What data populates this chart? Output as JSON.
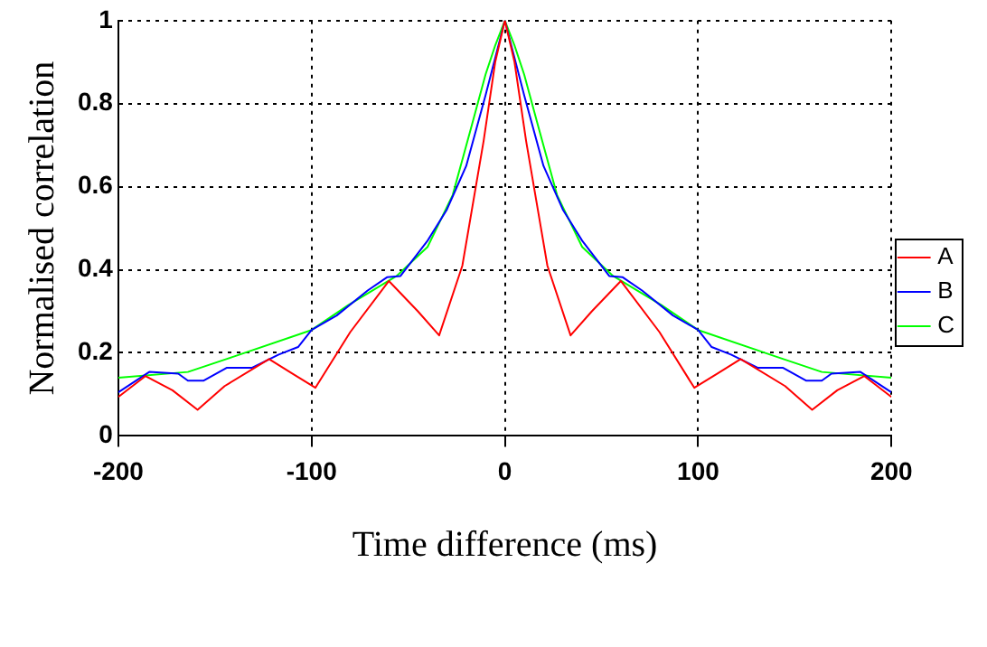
{
  "chart_data": {
    "type": "line",
    "xlabel": "Time difference (ms)",
    "ylabel": "Normalised correlation",
    "xlim": [
      -200,
      200
    ],
    "xticks": [
      -200,
      -100,
      0,
      100,
      200
    ],
    "ylim": [
      0,
      1
    ],
    "yticks": [
      0,
      0.2,
      0.4,
      0.6,
      0.8,
      1
    ],
    "grid": true,
    "legend": "right",
    "marker": "none",
    "line_style": "solid",
    "series": [
      {
        "name": "A",
        "color": "#ff0000",
        "x": [
          -200,
          -186,
          -172,
          -159,
          -145,
          -122,
          -110,
          -98,
          -80,
          -60,
          -45,
          -34,
          -22,
          -11,
          -5,
          0,
          5,
          11,
          22,
          34,
          45,
          60,
          80,
          98,
          110,
          122,
          145,
          159,
          172,
          186,
          200
        ],
        "values": [
          0.094,
          0.144,
          0.11,
          0.063,
          0.12,
          0.185,
          0.15,
          0.116,
          0.25,
          0.373,
          0.3,
          0.242,
          0.41,
          0.71,
          0.9,
          1,
          0.9,
          0.71,
          0.41,
          0.242,
          0.3,
          0.373,
          0.25,
          0.116,
          0.15,
          0.185,
          0.12,
          0.063,
          0.11,
          0.144,
          0.094
        ]
      },
      {
        "name": "B",
        "color": "#0000ff",
        "x": [
          -200,
          -184,
          -169,
          -164,
          -156,
          -144,
          -131,
          -117,
          -107,
          -100,
          -87,
          -71,
          -61,
          -54,
          -40,
          -30,
          -20,
          -10,
          0,
          10,
          20,
          30,
          40,
          54,
          61,
          71,
          87,
          100,
          107,
          117,
          131,
          144,
          156,
          164,
          169,
          184,
          200
        ],
        "values": [
          0.105,
          0.154,
          0.15,
          0.133,
          0.133,
          0.164,
          0.164,
          0.196,
          0.214,
          0.255,
          0.29,
          0.35,
          0.382,
          0.385,
          0.47,
          0.545,
          0.65,
          0.82,
          1,
          0.82,
          0.65,
          0.545,
          0.47,
          0.385,
          0.382,
          0.35,
          0.29,
          0.255,
          0.214,
          0.196,
          0.164,
          0.164,
          0.133,
          0.133,
          0.15,
          0.154,
          0.105
        ]
      },
      {
        "name": "C",
        "color": "#00ff00",
        "x": [
          -200,
          -164,
          -141,
          -100,
          -81,
          -56,
          -40,
          -27,
          -17,
          -10,
          -5,
          0,
          5,
          10,
          17,
          27,
          40,
          56,
          81,
          100,
          141,
          164,
          200
        ],
        "values": [
          0.14,
          0.154,
          0.19,
          0.255,
          0.315,
          0.385,
          0.455,
          0.58,
          0.75,
          0.87,
          0.94,
          1,
          0.94,
          0.87,
          0.75,
          0.58,
          0.455,
          0.385,
          0.315,
          0.255,
          0.19,
          0.154,
          0.14
        ]
      }
    ]
  }
}
